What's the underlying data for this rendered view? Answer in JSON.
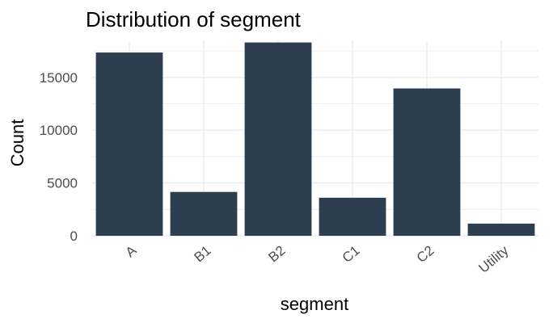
{
  "chart_data": {
    "type": "bar",
    "title": "Distribution of segment",
    "xlabel": "segment",
    "ylabel": "Count",
    "categories": [
      "A",
      "B1",
      "B2",
      "C1",
      "C2",
      "Utility"
    ],
    "values": [
      17350,
      4150,
      18300,
      3600,
      13950,
      1150
    ],
    "ylim": [
      0,
      18500
    ],
    "yticks": [
      0,
      5000,
      10000,
      15000
    ],
    "ytick_labels": [
      "0",
      "5000",
      "10000",
      "15000"
    ],
    "grid": true,
    "legend": "none",
    "bar_color": "#2d3e50",
    "grid_color": "#ebebeb",
    "axis_text_color": "#4d4d4d",
    "title_color": "#000000"
  }
}
